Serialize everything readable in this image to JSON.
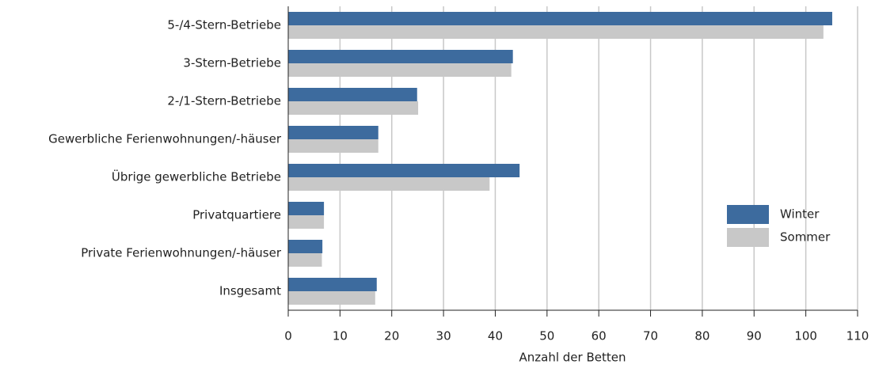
{
  "chart_data": {
    "type": "hbar",
    "x_label": "Anzahl der Betten",
    "categories": [
      "5-/4-Stern-Betriebe",
      "3-Stern-Betriebe",
      "2-/1-Stern-Betriebe",
      "Gewerbliche Ferienwohnungen/-häuser",
      "Übrige gewerbliche Betriebe",
      "Privatquartiere",
      "Private Ferienwohnungen/-häuser",
      "Insgesamt"
    ],
    "series": [
      {
        "name": "Winter",
        "color": "#3d6b9e",
        "values": [
          105.1,
          43.4,
          24.9,
          17.4,
          44.7,
          6.9,
          6.6,
          17.1
        ]
      },
      {
        "name": "Sommer",
        "color": "#c8c8c8",
        "values": [
          103.4,
          43.1,
          25.1,
          17.4,
          38.9,
          6.9,
          6.5,
          16.8
        ]
      }
    ],
    "xlim": [
      0,
      110
    ],
    "xticks": [
      0,
      10,
      20,
      30,
      40,
      50,
      60,
      70,
      80,
      90,
      100,
      110
    ],
    "grid": true,
    "legend": "right"
  }
}
